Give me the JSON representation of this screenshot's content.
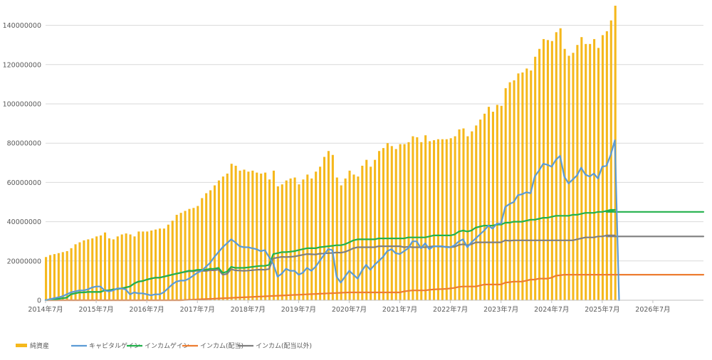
{
  "chart_data": {
    "type": "bar",
    "title": "",
    "xlabel": "",
    "ylabel": "",
    "ylim": [
      0,
      150000000
    ],
    "yticks": [
      0,
      20000000,
      40000000,
      60000000,
      80000000,
      100000000,
      120000000,
      140000000
    ],
    "ytick_labels": [
      "0",
      "20000000",
      "40000000",
      "60000000",
      "80000000",
      "100000000",
      "120000000",
      "140000000"
    ],
    "x_start": "2014-07",
    "x_end": "2027-07",
    "xtick_labels": [
      "2014年7月",
      "2015年7月",
      "2016年7月",
      "2017年7月",
      "2018年7月",
      "2019年7月",
      "2020年7月",
      "2021年7月",
      "2022年7月",
      "2023年7月",
      "2024年7月",
      "2025年7月",
      "2026年7月"
    ],
    "grid": true,
    "legend_position": "bottom",
    "colors": {
      "bar": "#F5B81C",
      "capital": "#5B9BD5",
      "income": "#22B14C",
      "dividend": "#ED7D31",
      "other": "#7F7F7F",
      "grid": "#D9D9D9",
      "axis": "#BFBFBF"
    },
    "series": [
      {
        "name": "純資産",
        "kind": "bar",
        "start": "2014-07",
        "values": [
          22000000,
          23000000,
          23500000,
          24000000,
          24500000,
          25000000,
          26500000,
          28500000,
          29500000,
          30500000,
          31000000,
          31500000,
          32500000,
          33000000,
          34500000,
          31500000,
          31000000,
          32500000,
          33500000,
          34000000,
          33500000,
          32500000,
          35000000,
          35000000,
          35000000,
          35500000,
          36000000,
          36500000,
          36500000,
          38500000,
          40500000,
          43500000,
          44500000,
          45500000,
          46500000,
          47000000,
          48000000,
          52000000,
          54500000,
          56000000,
          58500000,
          61000000,
          63000000,
          64500000,
          69500000,
          68500000,
          66000000,
          66500000,
          65500000,
          66000000,
          65000000,
          64500000,
          65000000,
          61500000,
          66000000,
          58000000,
          59000000,
          61000000,
          62000000,
          62500000,
          59000000,
          61500000,
          64000000,
          62000000,
          65500000,
          68000000,
          73000000,
          76000000,
          74000000,
          62500000,
          58500000,
          62000000,
          66000000,
          64000000,
          63000000,
          68500000,
          71500000,
          68000000,
          71500000,
          76000000,
          77500000,
          80000000,
          78500000,
          77000000,
          79500000,
          79500000,
          80500000,
          83500000,
          83000000,
          80500000,
          84000000,
          81000000,
          81500000,
          82000000,
          82000000,
          82000000,
          82500000,
          83500000,
          87000000,
          87500000,
          83500000,
          86000000,
          89000000,
          92000000,
          95000000,
          98500000,
          96000000,
          99500000,
          99000000,
          108000000,
          111000000,
          112000000,
          115500000,
          116000000,
          118000000,
          117000000,
          124000000,
          128000000,
          133000000,
          132500000,
          132000000,
          136500000,
          138500000,
          128000000,
          124500000,
          126000000,
          130000000,
          134000000,
          130500000,
          130500000,
          133000000,
          128500000,
          135000000,
          137000000,
          142500000,
          150000000
        ]
      },
      {
        "name": "キャピタルゲイン",
        "kind": "line",
        "start": "2014-07",
        "values": [
          0,
          500000,
          1000000,
          1500000,
          2000000,
          3000000,
          4000000,
          4500000,
          5000000,
          5000000,
          5500000,
          6500000,
          7000000,
          7000000,
          5000000,
          4500000,
          5000000,
          6000000,
          6000000,
          5500000,
          3000000,
          4000000,
          3500000,
          3500000,
          3000000,
          2500000,
          3000000,
          3000000,
          4000000,
          6000000,
          8000000,
          9500000,
          10000000,
          10000000,
          11000000,
          12500000,
          14000000,
          15000000,
          17000000,
          19000000,
          22000000,
          24500000,
          27000000,
          29000000,
          31000000,
          29500000,
          27500000,
          27000000,
          27000000,
          26500000,
          26000000,
          25000000,
          25500000,
          22000000,
          18500000,
          12000000,
          13500000,
          16000000,
          15000000,
          15000000,
          13000000,
          14000000,
          16500000,
          15000000,
          17000000,
          20000000,
          23000000,
          26000000,
          25500000,
          12000000,
          9000000,
          12000000,
          15000000,
          13000000,
          11000000,
          15000000,
          18000000,
          15500000,
          18000000,
          20000000,
          22000000,
          25000000,
          26000000,
          24000000,
          23500000,
          25000000,
          26500000,
          30000000,
          30000000,
          26500000,
          29000000,
          26000000,
          27500000,
          27500000,
          27500000,
          27000000,
          27000000,
          28000000,
          30000000,
          31000000,
          27000000,
          29500000,
          31500000,
          33500000,
          35500000,
          38000000,
          36500000,
          39000000,
          39000000,
          47500000,
          49000000,
          50000000,
          53500000,
          54000000,
          55000000,
          54500000,
          63000000,
          66000000,
          69500000,
          69000000,
          68000000,
          71500000,
          73500000,
          63000000,
          59500000,
          61500000,
          63500000,
          67500000,
          64000000,
          63000000,
          64500000,
          62000000,
          68000000,
          68500000,
          74000000,
          81500000,
          0
        ]
      },
      {
        "name": "インカムゲイン",
        "kind": "line",
        "start": "2014-07",
        "values": [
          0,
          300000,
          500000,
          700000,
          1000000,
          1300000,
          3000000,
          3500000,
          4000000,
          4000000,
          4200000,
          4200000,
          4200000,
          4200000,
          5000000,
          5000000,
          5500000,
          5700000,
          6000000,
          6500000,
          7000000,
          8500000,
          9500000,
          9800000,
          10500000,
          11000000,
          11500000,
          11500000,
          12000000,
          12500000,
          13000000,
          13500000,
          14000000,
          14500000,
          15000000,
          15000000,
          15500000,
          15500000,
          15500000,
          16000000,
          16000000,
          16500000,
          14000000,
          14500000,
          17000000,
          16500000,
          16500000,
          16500000,
          16700000,
          17000000,
          17300000,
          17500000,
          17500000,
          18000000,
          23500000,
          24000000,
          24500000,
          24500000,
          24700000,
          25000000,
          25500000,
          26000000,
          26500000,
          26500000,
          26500000,
          27000000,
          27200000,
          27500000,
          27700000,
          28000000,
          28000000,
          28500000,
          29500000,
          30500000,
          31000000,
          31000000,
          31000000,
          31000000,
          31000000,
          31500000,
          31500000,
          31500000,
          31500000,
          31500000,
          31500000,
          31500000,
          32000000,
          32000000,
          32000000,
          32000000,
          32000000,
          32500000,
          33000000,
          33000000,
          33000000,
          33000000,
          33000000,
          33500000,
          35000000,
          35500000,
          35000000,
          35500000,
          37000000,
          37500000,
          38000000,
          38000000,
          38000000,
          38500000,
          38500000,
          39500000,
          39500000,
          40000000,
          40000000,
          40000000,
          40500000,
          41000000,
          41000000,
          41500000,
          42000000,
          42000000,
          42500000,
          43000000,
          43000000,
          43000000,
          43000000,
          43500000,
          43500000,
          44000000,
          44500000,
          44500000,
          44500000,
          45000000,
          45000000,
          45500000,
          46000000,
          46000000
        ],
        "projection": {
          "start": "2025-08",
          "end": "2027-07",
          "value": 45000000
        }
      },
      {
        "name": "インカム(配当)",
        "kind": "line",
        "start": "2014-07",
        "values": [
          0,
          0,
          0,
          0,
          0,
          0,
          0,
          0,
          0,
          0,
          0,
          0,
          0,
          0,
          0,
          0,
          0,
          0,
          0,
          0,
          0,
          0,
          0,
          0,
          0,
          0,
          0,
          0,
          0,
          0,
          0,
          0,
          0,
          100000,
          200000,
          300000,
          400000,
          500000,
          600000,
          700000,
          800000,
          900000,
          1000000,
          1100000,
          1200000,
          1300000,
          1400000,
          1500000,
          1600000,
          1700000,
          1800000,
          1900000,
          2000000,
          2100000,
          2200000,
          2300000,
          2400000,
          2500000,
          2600000,
          2700000,
          2800000,
          2900000,
          3000000,
          3100000,
          3200000,
          3300000,
          3400000,
          3500000,
          3600000,
          3700000,
          3800000,
          3900000,
          4000000,
          4000000,
          4000000,
          4000000,
          4000000,
          4000000,
          4000000,
          4000000,
          4000000,
          4000000,
          4000000,
          4000000,
          4000000,
          4500000,
          4800000,
          5000000,
          5000000,
          5000000,
          5000000,
          5300000,
          5500000,
          5600000,
          5700000,
          5800000,
          6000000,
          6300000,
          6800000,
          7000000,
          7000000,
          7000000,
          7000000,
          7500000,
          8000000,
          8000000,
          8000000,
          8000000,
          8000000,
          9000000,
          9200000,
          9500000,
          9500000,
          9500000,
          10000000,
          10500000,
          10500000,
          11000000,
          11000000,
          11000000,
          11500000,
          12500000,
          12700000,
          13000000,
          13000000,
          13000000,
          13000000,
          13000000,
          13000000,
          13000000,
          13000000,
          13000000,
          13000000,
          13000000,
          13000000,
          13000000
        ],
        "projection": {
          "start": "2025-08",
          "end": "2027-07",
          "value": 13000000
        }
      },
      {
        "name": "インカム(配当以外)",
        "kind": "line",
        "start": "2014-07",
        "values": [
          0,
          300000,
          500000,
          700000,
          1000000,
          1300000,
          3000000,
          3500000,
          4000000,
          4000000,
          4200000,
          4200000,
          4200000,
          4200000,
          5000000,
          5000000,
          5500000,
          5700000,
          6000000,
          6500000,
          7000000,
          8500000,
          9500000,
          9800000,
          10500000,
          11000000,
          11500000,
          11500000,
          12000000,
          12500000,
          13000000,
          13500000,
          14000000,
          14400000,
          14800000,
          14700000,
          15100000,
          15000000,
          14900000,
          15300000,
          15200000,
          15600000,
          13000000,
          13400000,
          15800000,
          15200000,
          15100000,
          15000000,
          15100000,
          15300000,
          15500000,
          15600000,
          15500000,
          15900000,
          21300000,
          21700000,
          22100000,
          22000000,
          22100000,
          22300000,
          22700000,
          23100000,
          23500000,
          23400000,
          23300000,
          23700000,
          23800000,
          24000000,
          24100000,
          24300000,
          24200000,
          24600000,
          25500000,
          26500000,
          27000000,
          27000000,
          27000000,
          27000000,
          27000000,
          27500000,
          27500000,
          27500000,
          27500000,
          27500000,
          27500000,
          27000000,
          27200000,
          27000000,
          27000000,
          27000000,
          27000000,
          27200000,
          27500000,
          27400000,
          27300000,
          27200000,
          27000000,
          27200000,
          28200000,
          28500000,
          28000000,
          28500000,
          29500000,
          29500000,
          29500000,
          29500000,
          29500000,
          29500000,
          29500000,
          30500000,
          30300000,
          30500000,
          30500000,
          30500000,
          30500000,
          30500000,
          30500000,
          30500000,
          30500000,
          30500000,
          30500000,
          30500000,
          30500000,
          30500000,
          30500000,
          30500000,
          31000000,
          31500000,
          32000000,
          32000000,
          32000000,
          32500000,
          32500000,
          33000000,
          33000000,
          33000000
        ],
        "projection": {
          "start": "2025-08",
          "end": "2027-07",
          "value": 32500000
        }
      }
    ]
  }
}
